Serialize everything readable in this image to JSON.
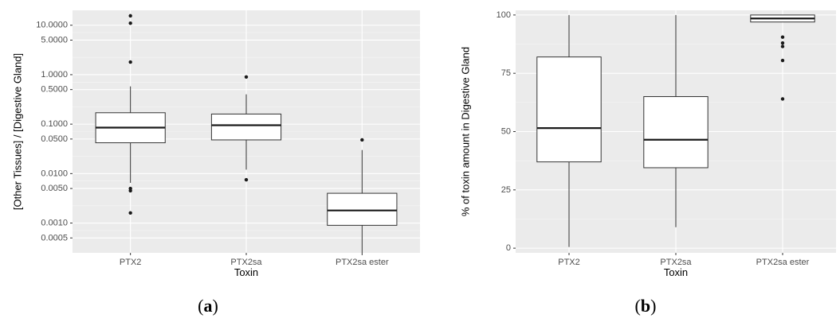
{
  "chart_data": [
    {
      "type": "boxplot",
      "panel_label_open": "(",
      "panel_label_letter": "a",
      "panel_label_close": ")",
      "xlabel": "Toxin",
      "ylabel": "[Other Tissues] / [Digestive Gland]",
      "yscale": "log",
      "ylim": [
        0.00025,
        20
      ],
      "yticks": [
        0.0005,
        0.001,
        0.005,
        0.01,
        0.05,
        0.1,
        0.5,
        1,
        5,
        10
      ],
      "ytick_labels": [
        "0.0005",
        "0.0010",
        "0.0050",
        "0.0100",
        "0.0500",
        "0.1000",
        "0.5000",
        "1.0000",
        "5.0000",
        "10.0000"
      ],
      "grid": true,
      "categories": [
        "PTX2",
        "PTX2sa",
        "PTX2sa ester"
      ],
      "boxes": [
        {
          "category": "PTX2",
          "whisker_low": 0.0065,
          "q1": 0.042,
          "median": 0.085,
          "q3": 0.17,
          "whisker_high": 0.58,
          "outliers": [
            0.0016,
            0.0045,
            0.005,
            1.8,
            11,
            15.5
          ]
        },
        {
          "category": "PTX2sa",
          "whisker_low": 0.012,
          "q1": 0.048,
          "median": 0.095,
          "q3": 0.16,
          "whisker_high": 0.4,
          "outliers": [
            0.0075,
            0.9
          ]
        },
        {
          "category": "PTX2sa ester",
          "whisker_low": 0.00025,
          "q1": 0.0009,
          "median": 0.0018,
          "q3": 0.004,
          "whisker_high": 0.03,
          "outliers": [
            0.048
          ]
        }
      ]
    },
    {
      "type": "boxplot",
      "panel_label_open": "(",
      "panel_label_letter": "b",
      "panel_label_close": ")",
      "xlabel": "Toxin",
      "ylabel": "% of toxin amount in Digestive Gland",
      "yscale": "linear",
      "ylim": [
        -2,
        102
      ],
      "yticks": [
        0,
        25,
        50,
        75,
        100
      ],
      "ytick_labels": [
        "0",
        "25",
        "50",
        "75",
        "100"
      ],
      "grid": true,
      "categories": [
        "PTX2",
        "PTX2sa",
        "PTX2sa ester"
      ],
      "boxes": [
        {
          "category": "PTX2",
          "whisker_low": 0.5,
          "q1": 37,
          "median": 51.5,
          "q3": 82,
          "whisker_high": 100,
          "outliers": []
        },
        {
          "category": "PTX2sa",
          "whisker_low": 9,
          "q1": 34.5,
          "median": 46.5,
          "q3": 65,
          "whisker_high": 100,
          "outliers": []
        },
        {
          "category": "PTX2sa ester",
          "whisker_low": 97,
          "q1": 97,
          "median": 98.5,
          "q3": 100,
          "whisker_high": 100,
          "outliers": [
            64,
            80.5,
            86.5,
            88,
            90.5
          ]
        }
      ]
    }
  ]
}
